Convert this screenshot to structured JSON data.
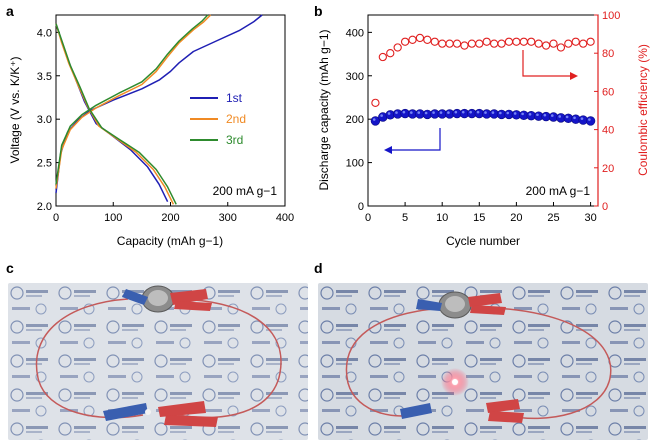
{
  "figure": {
    "panel_labels": [
      "a",
      "b",
      "c",
      "d"
    ]
  },
  "chart_data": [
    {
      "panel": "a",
      "type": "line",
      "xlabel": "Capacity (mAh g−1)",
      "ylabel": "Voltage (V vs. K/K⁺)",
      "xlim": [
        0,
        400
      ],
      "ylim": [
        2.0,
        4.2
      ],
      "xticks": [
        "0",
        "100",
        "200",
        "300",
        "400"
      ],
      "yticks": [
        "2.0",
        "2.5",
        "3.0",
        "3.5",
        "4.0"
      ],
      "annotation": "200 mA g−1",
      "legend_position": "center-right",
      "series": [
        {
          "name": "1st",
          "color": "#1f1fb4",
          "charge": [
            [
              0,
              2.15
            ],
            [
              8,
              2.6
            ],
            [
              20,
              2.85
            ],
            [
              40,
              3.0
            ],
            [
              60,
              3.1
            ],
            [
              100,
              3.22
            ],
            [
              150,
              3.35
            ],
            [
              180,
              3.45
            ],
            [
              200,
              3.55
            ],
            [
              215,
              3.65
            ],
            [
              240,
              3.78
            ],
            [
              280,
              3.9
            ],
            [
              320,
              4.02
            ],
            [
              345,
              4.12
            ],
            [
              360,
              4.2
            ]
          ],
          "discharge": [
            [
              0,
              4.1
            ],
            [
              10,
              3.9
            ],
            [
              20,
              3.7
            ],
            [
              35,
              3.45
            ],
            [
              50,
              3.2
            ],
            [
              70,
              2.95
            ],
            [
              100,
              2.8
            ],
            [
              130,
              2.65
            ],
            [
              160,
              2.45
            ],
            [
              180,
              2.25
            ],
            [
              195,
              2.05
            ]
          ]
        },
        {
          "name": "2nd",
          "color": "#f08a24",
          "charge": [
            [
              0,
              2.2
            ],
            [
              10,
              2.65
            ],
            [
              25,
              2.88
            ],
            [
              45,
              3.02
            ],
            [
              70,
              3.13
            ],
            [
              110,
              3.27
            ],
            [
              150,
              3.4
            ],
            [
              175,
              3.55
            ],
            [
              195,
              3.72
            ],
            [
              215,
              3.88
            ],
            [
              240,
              4.03
            ],
            [
              258,
              4.12
            ],
            [
              270,
              4.2
            ]
          ],
          "discharge": [
            [
              0,
              4.1
            ],
            [
              10,
              3.88
            ],
            [
              22,
              3.65
            ],
            [
              38,
              3.4
            ],
            [
              55,
              3.15
            ],
            [
              75,
              2.92
            ],
            [
              105,
              2.78
            ],
            [
              140,
              2.62
            ],
            [
              170,
              2.42
            ],
            [
              190,
              2.22
            ],
            [
              205,
              2.02
            ]
          ]
        },
        {
          "name": "3rd",
          "color": "#2e8b2e",
          "charge": [
            [
              0,
              2.25
            ],
            [
              10,
              2.7
            ],
            [
              25,
              2.92
            ],
            [
              45,
              3.05
            ],
            [
              70,
              3.16
            ],
            [
              110,
              3.3
            ],
            [
              150,
              3.43
            ],
            [
              175,
              3.58
            ],
            [
              195,
              3.75
            ],
            [
              215,
              3.9
            ],
            [
              238,
              4.04
            ],
            [
              255,
              4.13
            ],
            [
              265,
              4.2
            ]
          ],
          "discharge": [
            [
              0,
              4.1
            ],
            [
              12,
              3.87
            ],
            [
              25,
              3.62
            ],
            [
              42,
              3.37
            ],
            [
              58,
              3.12
            ],
            [
              80,
              2.9
            ],
            [
              110,
              2.77
            ],
            [
              145,
              2.62
            ],
            [
              175,
              2.42
            ],
            [
              195,
              2.22
            ],
            [
              210,
              2.02
            ]
          ]
        }
      ]
    },
    {
      "panel": "b",
      "type": "scatter",
      "xlabel": "Cycle number",
      "ylabel": "Discharge capacity (mAh g−1)",
      "y2label": "Coulombic efficiency (%)",
      "xlim": [
        0,
        31
      ],
      "ylim": [
        0,
        440
      ],
      "y2lim": [
        0,
        100
      ],
      "xticks": [
        "0",
        "5",
        "10",
        "15",
        "20",
        "25",
        "30"
      ],
      "yticks": [
        "0",
        "100",
        "200",
        "300",
        "400"
      ],
      "y2ticks": [
        "0",
        "20",
        "40",
        "60",
        "80",
        "100"
      ],
      "annotation": "200 mA g−1",
      "series": [
        {
          "name": "Discharge capacity",
          "axis": "left",
          "color": "#1515c8",
          "x": [
            1,
            2,
            3,
            4,
            5,
            6,
            7,
            8,
            9,
            10,
            11,
            12,
            13,
            14,
            15,
            16,
            17,
            18,
            19,
            20,
            21,
            22,
            23,
            24,
            25,
            26,
            27,
            28,
            29,
            30
          ],
          "y": [
            196,
            205,
            210,
            212,
            213,
            212,
            212,
            211,
            212,
            212,
            212,
            213,
            213,
            213,
            213,
            212,
            212,
            211,
            211,
            210,
            209,
            208,
            207,
            206,
            205,
            203,
            202,
            200,
            198,
            196
          ]
        },
        {
          "name": "Coulombic efficiency",
          "axis": "right",
          "color": "#e02020",
          "x": [
            1,
            2,
            3,
            4,
            5,
            6,
            7,
            8,
            9,
            10,
            11,
            12,
            13,
            14,
            15,
            16,
            17,
            18,
            19,
            20,
            21,
            22,
            23,
            24,
            25,
            26,
            27,
            28,
            29,
            30
          ],
          "y": [
            54,
            78,
            80,
            83,
            86,
            87,
            88,
            87,
            86,
            85,
            85,
            85,
            84,
            85,
            85,
            86,
            85,
            85,
            86,
            86,
            86,
            86,
            85,
            84,
            85,
            83,
            85,
            86,
            85,
            86
          ]
        }
      ]
    }
  ]
}
